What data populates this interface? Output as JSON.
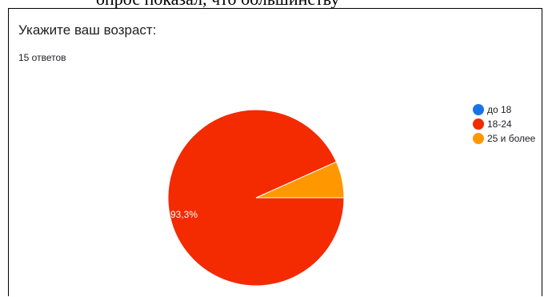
{
  "header_text": "опрос показал, что большинству",
  "card": {
    "question_title": "Укажите ваш возраст:",
    "responses_count": "15 ответов"
  },
  "chart_data": {
    "type": "pie",
    "categories": [
      "до 18",
      "18-24",
      "25 и более"
    ],
    "values": [
      0,
      93.3,
      6.7
    ],
    "colors": [
      "#1a73e8",
      "#f42a00",
      "#ff9800"
    ],
    "data_labels": [
      "",
      "93,3%",
      ""
    ],
    "legend_placement": "right"
  }
}
